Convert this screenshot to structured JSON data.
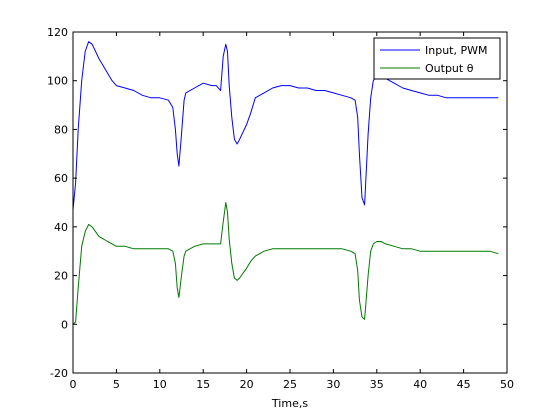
{
  "chart_data": {
    "type": "line",
    "title": "",
    "xlabel": "Time,s",
    "ylabel": "",
    "xlim": [
      0,
      50
    ],
    "ylim": [
      -20,
      120
    ],
    "xticks": [
      0,
      5,
      10,
      15,
      20,
      25,
      30,
      35,
      40,
      45,
      50
    ],
    "yticks": [
      -20,
      0,
      20,
      40,
      60,
      80,
      100,
      120
    ],
    "xtick_labels": [
      "0",
      "5",
      "10",
      "15",
      "20",
      "25",
      "30",
      "35",
      "40",
      "45",
      "50"
    ],
    "ytick_labels": [
      "-20",
      "0",
      "20",
      "40",
      "60",
      "80",
      "100",
      "120"
    ],
    "grid": false,
    "legend_position": "top-right",
    "series": [
      {
        "name": "Input, PWM",
        "color": "#0000ff",
        "x": [
          0,
          0.3,
          0.6,
          1.0,
          1.4,
          1.8,
          2.2,
          2.6,
          3.0,
          3.5,
          4.0,
          4.5,
          5.0,
          6.0,
          7.0,
          8.0,
          9.0,
          10.0,
          11.0,
          11.5,
          11.8,
          12.0,
          12.2,
          12.5,
          12.8,
          13.0,
          14.0,
          15.0,
          16.0,
          16.5,
          17.0,
          17.3,
          17.6,
          17.8,
          18.0,
          18.3,
          18.6,
          18.9,
          19.2,
          19.6,
          20.0,
          20.5,
          21.0,
          22.0,
          23.0,
          24.0,
          25.0,
          26.0,
          27.0,
          28.0,
          29.0,
          30.0,
          31.0,
          32.0,
          32.5,
          32.8,
          33.0,
          33.3,
          33.6,
          34.0,
          34.3,
          34.6,
          35.0,
          35.5,
          36.0,
          37.0,
          38.0,
          39.0,
          40.0,
          41.0,
          42.0,
          43.0,
          44.0,
          45.0,
          46.0,
          47.0,
          48.0,
          49.0
        ],
        "y": [
          47,
          58,
          80,
          100,
          112,
          116,
          115,
          112,
          109,
          106,
          103,
          100,
          98,
          97,
          96,
          94,
          93,
          93,
          92,
          89,
          80,
          70,
          65,
          78,
          92,
          95,
          97,
          99,
          98,
          98,
          96,
          110,
          115,
          112,
          98,
          85,
          76,
          74,
          76,
          79,
          82,
          87,
          93,
          95,
          97,
          98,
          98,
          97,
          97,
          96,
          96,
          95,
          94,
          93,
          92,
          85,
          70,
          52,
          49,
          78,
          93,
          100,
          102,
          103,
          101,
          99,
          97,
          96,
          95,
          94,
          94,
          93,
          93,
          93,
          93,
          93,
          93,
          93
        ]
      },
      {
        "name": "Output θ",
        "color": "#007a00",
        "x": [
          0,
          0.3,
          0.6,
          1.0,
          1.4,
          1.8,
          2.2,
          2.6,
          3.0,
          3.5,
          4.0,
          4.5,
          5.0,
          6.0,
          7.0,
          8.0,
          9.0,
          10.0,
          11.0,
          11.5,
          11.8,
          12.0,
          12.2,
          12.5,
          12.8,
          13.0,
          14.0,
          15.0,
          16.0,
          16.5,
          17.0,
          17.3,
          17.6,
          17.8,
          18.0,
          18.3,
          18.6,
          18.9,
          19.2,
          19.6,
          20.0,
          20.5,
          21.0,
          22.0,
          23.0,
          24.0,
          25.0,
          26.0,
          27.0,
          28.0,
          29.0,
          30.0,
          31.0,
          32.0,
          32.5,
          32.8,
          33.0,
          33.3,
          33.6,
          34.0,
          34.3,
          34.6,
          35.0,
          35.5,
          36.0,
          37.0,
          38.0,
          39.0,
          40.0,
          41.0,
          42.0,
          43.0,
          44.0,
          45.0,
          46.0,
          47.0,
          48.0,
          49.0
        ],
        "y": [
          0,
          1,
          15,
          32,
          38,
          41,
          40,
          38,
          36,
          35,
          34,
          33,
          32,
          32,
          31,
          31,
          31,
          31,
          31,
          30,
          25,
          15,
          11,
          20,
          28,
          30,
          32,
          33,
          33,
          33,
          33,
          42,
          50,
          46,
          35,
          25,
          19,
          18,
          19,
          21,
          23,
          26,
          28,
          30,
          31,
          31,
          31,
          31,
          31,
          31,
          31,
          31,
          31,
          30,
          29,
          22,
          10,
          3,
          2,
          20,
          30,
          33,
          34,
          34,
          33,
          32,
          31,
          31,
          30,
          30,
          30,
          30,
          30,
          30,
          30,
          30,
          30,
          29
        ]
      }
    ]
  }
}
